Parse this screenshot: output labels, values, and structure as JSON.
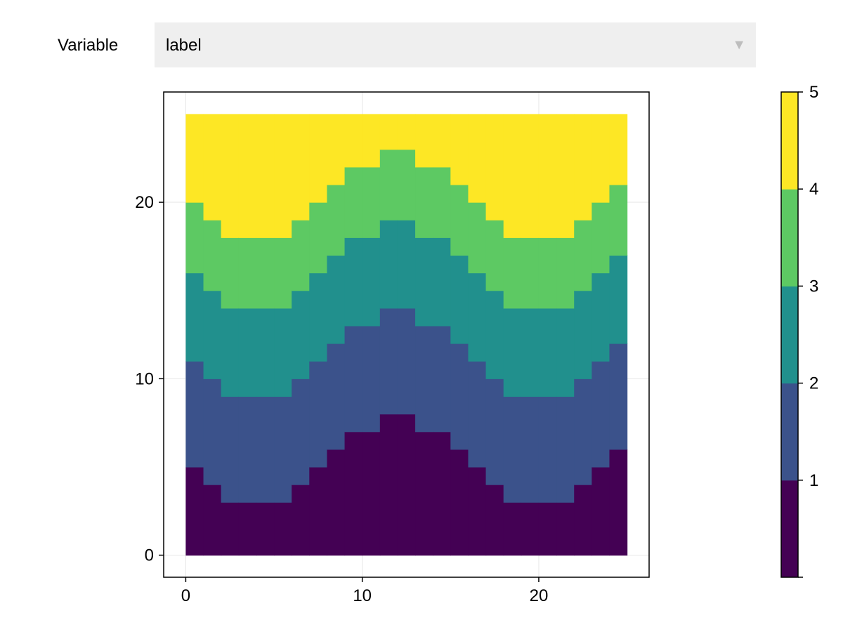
{
  "control": {
    "label": "Variable",
    "selected": "label",
    "arrow_icon": "triangle-down-icon"
  },
  "chart_data": {
    "type": "heatmap",
    "title": "",
    "xlabel": "",
    "ylabel": "",
    "x_ticks": [
      "0",
      "10",
      "20"
    ],
    "y_ticks": [
      "0",
      "10",
      "20"
    ],
    "xlim": [
      -1.25,
      26.25
    ],
    "ylim": [
      -1.25,
      26.25
    ],
    "grid": true,
    "legend": "colorbar-right",
    "colormap": "viridis",
    "colorbar": {
      "range": [
        0,
        5
      ],
      "ticks": [
        "1",
        "2",
        "3",
        "4",
        "5"
      ],
      "levels": [
        {
          "range": [
            0,
            1
          ],
          "color": "#440154"
        },
        {
          "range": [
            1,
            2
          ],
          "color": "#3b528b"
        },
        {
          "range": [
            2,
            3
          ],
          "color": "#21908d"
        },
        {
          "range": [
            3,
            4
          ],
          "color": "#5dc963"
        },
        {
          "range": [
            4,
            5
          ],
          "color": "#fde725"
        }
      ]
    },
    "cells": {
      "x_range": [
        0,
        25
      ],
      "y_range": [
        0,
        25
      ],
      "columns": 25,
      "rows": 25
    },
    "boundaries": {
      "description_columns": "upper y of each class band per column (columns 0..24)",
      "class_1_top": [
        5,
        4,
        3,
        3,
        3,
        3,
        4,
        5,
        6,
        7,
        7,
        8,
        8,
        7,
        7,
        6,
        5,
        4,
        3,
        3,
        3,
        3,
        4,
        5,
        6
      ],
      "class_2_top": [
        11,
        10,
        9,
        9,
        9,
        9,
        10,
        11,
        12,
        13,
        13,
        14,
        14,
        13,
        13,
        12,
        11,
        10,
        9,
        9,
        9,
        9,
        10,
        11,
        12
      ],
      "class_3_top": [
        16,
        15,
        14,
        14,
        14,
        14,
        15,
        16,
        17,
        18,
        18,
        19,
        19,
        18,
        18,
        17,
        16,
        15,
        14,
        14,
        14,
        14,
        15,
        16,
        17
      ],
      "class_4_top": [
        20,
        19,
        18,
        18,
        18,
        18,
        19,
        20,
        21,
        22,
        22,
        23,
        23,
        22,
        22,
        21,
        20,
        19,
        18,
        18,
        18,
        18,
        19,
        20,
        21
      ]
    }
  }
}
